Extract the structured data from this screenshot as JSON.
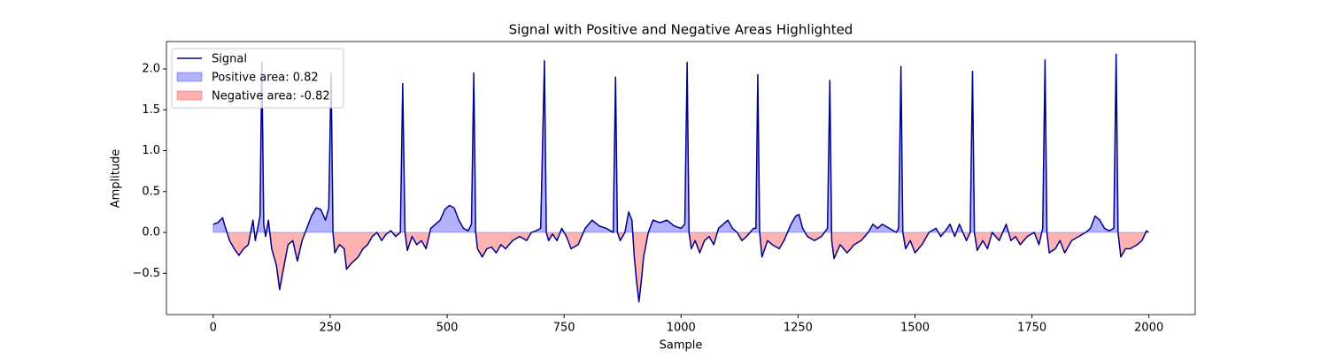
{
  "chart_data": {
    "type": "line",
    "title": "Signal with Positive and Negative Areas Highlighted",
    "x_label": "Sample",
    "y_label": "Amplitude",
    "x": [
      0,
      10,
      20,
      25,
      35,
      45,
      55,
      65,
      75,
      85,
      90,
      95,
      100,
      104,
      108,
      112,
      118,
      125,
      135,
      142,
      150,
      160,
      170,
      180,
      190,
      200,
      210,
      220,
      230,
      240,
      247,
      252,
      256,
      260,
      270,
      280,
      285,
      295,
      310,
      320,
      330,
      340,
      350,
      360,
      370,
      380,
      390,
      400,
      405,
      410,
      415,
      425,
      435,
      445,
      455,
      465,
      475,
      485,
      495,
      505,
      515,
      525,
      535,
      545,
      552,
      557,
      561,
      565,
      575,
      585,
      595,
      605,
      615,
      625,
      640,
      655,
      670,
      680,
      690,
      700,
      708,
      712,
      717,
      725,
      735,
      745,
      755,
      765,
      780,
      795,
      810,
      825,
      840,
      855,
      860,
      864,
      870,
      880,
      888,
      895,
      900,
      905,
      910,
      915,
      920,
      930,
      940,
      955,
      970,
      985,
      1000,
      1008,
      1013,
      1017,
      1022,
      1030,
      1040,
      1050,
      1060,
      1070,
      1080,
      1090,
      1100,
      1110,
      1120,
      1130,
      1140,
      1155,
      1160,
      1164,
      1168,
      1173,
      1185,
      1195,
      1210,
      1220,
      1235,
      1245,
      1252,
      1260,
      1270,
      1285,
      1300,
      1313,
      1318,
      1322,
      1327,
      1340,
      1355,
      1370,
      1385,
      1400,
      1410,
      1420,
      1430,
      1445,
      1460,
      1465,
      1470,
      1474,
      1480,
      1490,
      1500,
      1515,
      1530,
      1545,
      1555,
      1565,
      1575,
      1585,
      1595,
      1610,
      1618,
      1623,
      1627,
      1633,
      1645,
      1655,
      1665,
      1680,
      1695,
      1705,
      1715,
      1725,
      1740,
      1755,
      1765,
      1773,
      1778,
      1782,
      1787,
      1800,
      1810,
      1820,
      1835,
      1850,
      1865,
      1875,
      1885,
      1895,
      1905,
      1915,
      1925,
      1930,
      1934,
      1940,
      1950,
      1960,
      1975,
      1985,
      1995,
      1999
    ],
    "series": [
      {
        "name": "Signal",
        "color": "#00008b",
        "values": [
          0.1,
          0.12,
          0.18,
          0.08,
          -0.1,
          -0.2,
          -0.28,
          -0.2,
          -0.15,
          0.15,
          -0.1,
          0.05,
          0.2,
          2.08,
          0.1,
          -0.05,
          0.15,
          -0.2,
          -0.4,
          -0.7,
          -0.45,
          -0.15,
          -0.1,
          -0.35,
          -0.1,
          0.05,
          0.2,
          0.3,
          0.28,
          0.15,
          0.3,
          1.95,
          0.0,
          -0.25,
          -0.15,
          -0.2,
          -0.45,
          -0.38,
          -0.3,
          -0.2,
          -0.15,
          -0.05,
          0.0,
          -0.1,
          -0.02,
          0.02,
          -0.05,
          0.0,
          1.82,
          0.0,
          -0.22,
          -0.05,
          -0.15,
          -0.1,
          -0.2,
          0.05,
          0.1,
          0.15,
          0.28,
          0.33,
          0.3,
          0.15,
          0.05,
          0.02,
          0.1,
          1.95,
          0.0,
          -0.2,
          -0.3,
          -0.2,
          -0.18,
          -0.25,
          -0.15,
          -0.2,
          -0.1,
          -0.05,
          -0.1,
          0.0,
          0.02,
          0.05,
          2.1,
          0.0,
          -0.1,
          -0.02,
          -0.1,
          0.05,
          -0.05,
          -0.2,
          -0.15,
          0.05,
          0.15,
          0.08,
          0.05,
          0.0,
          1.9,
          0.0,
          -0.1,
          0.0,
          0.25,
          0.15,
          -0.3,
          -0.6,
          -0.85,
          -0.6,
          -0.3,
          0.0,
          0.15,
          0.12,
          0.15,
          0.08,
          0.05,
          0.1,
          2.08,
          0.0,
          -0.2,
          -0.1,
          -0.25,
          -0.1,
          -0.05,
          -0.15,
          0.05,
          0.1,
          0.15,
          0.05,
          0.0,
          -0.1,
          -0.05,
          0.05,
          0.05,
          1.93,
          0.0,
          -0.3,
          -0.1,
          -0.15,
          -0.2,
          -0.1,
          0.1,
          0.2,
          0.22,
          0.05,
          -0.05,
          -0.1,
          -0.05,
          0.05,
          1.86,
          -0.1,
          -0.32,
          -0.15,
          -0.25,
          -0.15,
          -0.1,
          0.0,
          0.1,
          0.05,
          0.1,
          0.05,
          0.0,
          0.05,
          2.03,
          0.0,
          -0.2,
          -0.1,
          -0.25,
          -0.15,
          0.0,
          0.05,
          -0.05,
          0.02,
          0.1,
          -0.05,
          0.1,
          -0.1,
          0.0,
          1.97,
          0.0,
          -0.22,
          -0.1,
          -0.2,
          0.0,
          -0.1,
          0.1,
          -0.1,
          -0.05,
          -0.15,
          -0.05,
          0.0,
          -0.15,
          0.05,
          2.11,
          0.0,
          -0.25,
          -0.2,
          -0.1,
          -0.25,
          -0.1,
          -0.05,
          0.0,
          0.05,
          0.2,
          0.15,
          0.05,
          0.02,
          0.05,
          2.18,
          0.0,
          -0.3,
          -0.2,
          -0.2,
          -0.15,
          -0.1,
          0.02,
          0.0
        ]
      }
    ],
    "fills": [
      {
        "name": "Positive area: 0.82",
        "color": "#0000ff",
        "where": "positive"
      },
      {
        "name": "Negative area: -0.82",
        "color": "#ff0000",
        "where": "negative"
      }
    ],
    "xlim": [
      -99.95,
      2098.95
    ],
    "ylim": [
      -1.005,
      2.335
    ],
    "xticks": [
      0,
      250,
      500,
      750,
      1000,
      1250,
      1500,
      1750,
      2000
    ],
    "yticks": [
      {
        "value": -0.5,
        "label": "−0.5"
      },
      {
        "value": 0,
        "label": "0.0"
      },
      0.5,
      {
        "value": 1,
        "label": "1.0"
      },
      1.5,
      {
        "value": 2,
        "label": "2.0"
      }
    ],
    "legend": "upper left"
  }
}
